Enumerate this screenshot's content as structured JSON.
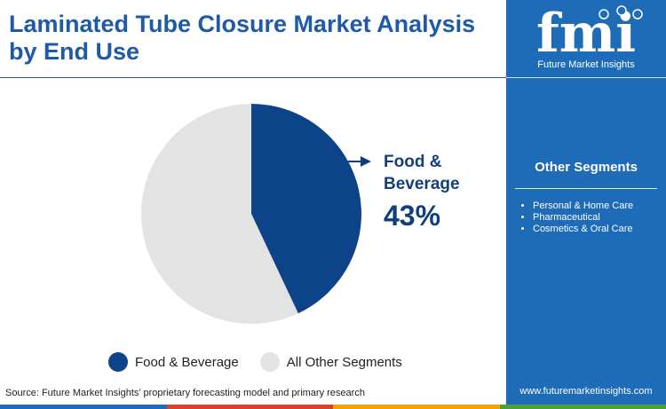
{
  "title": "Laminated Tube Closure Market Analysis by End Use",
  "chart_data": {
    "type": "pie",
    "slices": [
      {
        "label": "Food & Beverage",
        "value": 43,
        "color": "#0d4389"
      },
      {
        "label": "All Other Segments",
        "value": 57,
        "color": "#e3e3e3"
      }
    ],
    "callout": {
      "label": "Food & Beverage",
      "value_text": "43%"
    },
    "legend_position": "bottom"
  },
  "source": "Source: Future Market Insights’ proprietary forecasting model and primary research",
  "sidebar": {
    "logo_text": "fmi",
    "logo_tagline": "Future Market Insights",
    "segments_heading": "Other Segments",
    "segments": [
      "Personal & Home Care",
      "Pharmaceutical",
      "Cosmetics & Oral Care"
    ],
    "website": "www.futuremarketinsights.com"
  },
  "colors": {
    "title": "#1f5aa6",
    "sidebar": "#1e6bb8",
    "callout": "#123f7c",
    "bottom_bar": [
      "#1e6bb8",
      "#d9432b",
      "#f0a500",
      "#4a9e3c"
    ]
  }
}
